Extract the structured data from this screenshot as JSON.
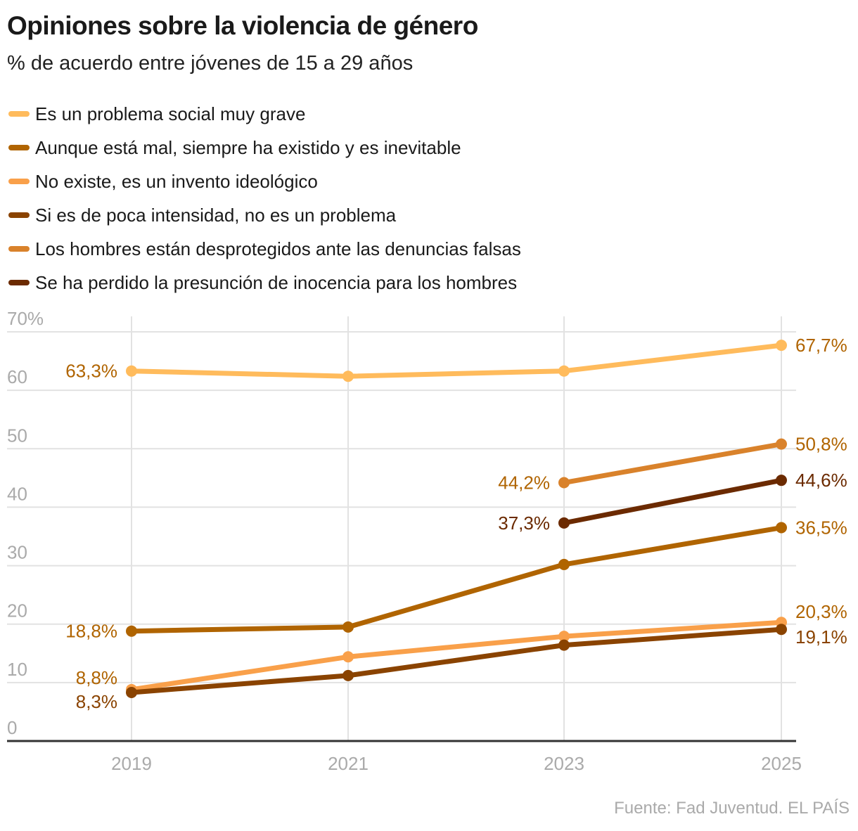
{
  "title": "Opiniones sobre la violencia de género",
  "subtitle": "% de acuerdo entre jóvenes de 15 a 29 años",
  "source": "Fuente: Fad Juventud. EL PAÍS",
  "chart_data": {
    "type": "line",
    "x": [
      "2019",
      "2021",
      "2023",
      "2025"
    ],
    "ylim": [
      0,
      70
    ],
    "yticks": [
      0,
      10,
      20,
      30,
      40,
      50,
      60,
      70
    ],
    "ytick_labels": [
      "0",
      "10",
      "20",
      "30",
      "40",
      "50",
      "60",
      "70%"
    ],
    "grid": true,
    "legend_position": "top",
    "series": [
      {
        "name": "Es un problema social muy grave",
        "color": "#ffbb5c",
        "label_color": "#b06400",
        "values": [
          63.3,
          62.4,
          63.3,
          67.7
        ],
        "labels": [
          "63,3%",
          null,
          null,
          "67,7%"
        ]
      },
      {
        "name": "Aunque está mal, siempre ha existido y es inevitable",
        "color": "#b06400",
        "label_color": "#b06400",
        "values": [
          18.8,
          19.5,
          30.2,
          36.5
        ],
        "labels": [
          "18,8%",
          null,
          null,
          "36,5%"
        ]
      },
      {
        "name": "No existe, es un invento ideológico",
        "color": "#f9a04a",
        "label_color": "#b06400",
        "values": [
          8.8,
          14.4,
          17.9,
          20.3
        ],
        "labels": [
          "8,8%",
          null,
          null,
          "20,3%"
        ]
      },
      {
        "name": "Si es de poca intensidad, no es un problema",
        "color": "#8a4300",
        "label_color": "#8a4300",
        "values": [
          8.3,
          11.2,
          16.4,
          19.1
        ],
        "labels": [
          "8,3%",
          null,
          null,
          "19,1%"
        ]
      },
      {
        "name": "Los hombres están desprotegidos ante las denuncias falsas",
        "color": "#d9822b",
        "label_color": "#b06400",
        "values": [
          null,
          null,
          44.2,
          50.8
        ],
        "labels": [
          null,
          null,
          "44,2%",
          "50,8%"
        ]
      },
      {
        "name": "Se ha perdido la presunción de inocencia para los hombres",
        "color": "#6b2a00",
        "label_color": "#6b2a00",
        "values": [
          null,
          null,
          37.3,
          44.6
        ],
        "labels": [
          null,
          null,
          "37,3%",
          "44,6%"
        ]
      }
    ]
  }
}
